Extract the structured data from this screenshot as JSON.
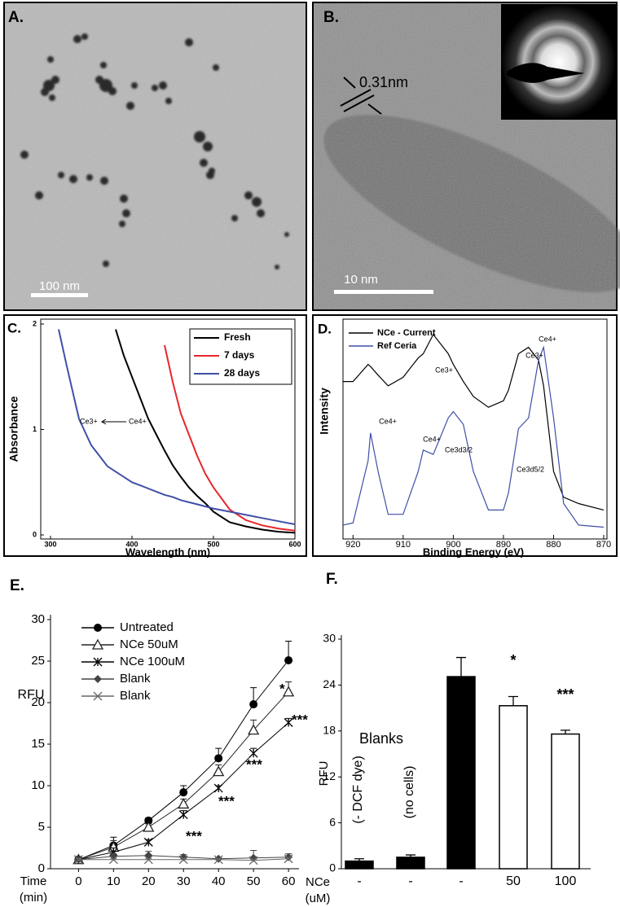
{
  "images": [
    {
      "label": "A.",
      "scale_bar": "100 nm"
    },
    {
      "label": "B.",
      "lattice_spacing": "0.31nm",
      "scale_bar": "10 nm"
    }
  ],
  "chart_data": [
    {
      "type": "line",
      "panel_label": "C.",
      "xlabel": "Wavelength (nm)",
      "ylabel": "Absorbance",
      "x": [
        310,
        320,
        335,
        350,
        370,
        380,
        390,
        400,
        410,
        420,
        430,
        440,
        450,
        460,
        470,
        480,
        490,
        500,
        520,
        540,
        560,
        580,
        600
      ],
      "series": [
        {
          "name": "Fresh",
          "color": "#000000",
          "values": [
            null,
            null,
            null,
            null,
            null,
            1.95,
            1.7,
            1.5,
            1.3,
            1.1,
            0.95,
            0.8,
            0.66,
            0.55,
            0.45,
            0.37,
            0.3,
            0.22,
            0.12,
            0.08,
            0.05,
            0.03,
            0.02
          ]
        },
        {
          "name": "7 days",
          "color": "#e8262b",
          "values": [
            null,
            null,
            null,
            null,
            null,
            null,
            null,
            null,
            null,
            null,
            null,
            1.8,
            1.45,
            1.15,
            0.95,
            0.75,
            0.58,
            0.45,
            0.24,
            0.14,
            0.09,
            0.06,
            0.04
          ]
        },
        {
          "name": "28 days",
          "color": "#3f4fa8",
          "values": [
            1.95,
            1.6,
            1.1,
            0.85,
            0.65,
            0.6,
            0.55,
            0.5,
            0.47,
            0.44,
            0.41,
            0.38,
            0.36,
            0.33,
            0.31,
            0.29,
            0.27,
            0.25,
            0.22,
            0.19,
            0.16,
            0.13,
            0.1
          ]
        }
      ],
      "xlim": [
        288,
        600
      ],
      "ylim": [
        0,
        2
      ],
      "xticks": [
        300,
        400,
        500,
        600
      ],
      "yticks": [
        0,
        1,
        2
      ],
      "legend": "upper right",
      "annotations": [
        "Ce3+",
        "Ce4+"
      ]
    },
    {
      "type": "line",
      "panel_label": "D.",
      "xlabel": "Binding Energy (eV)",
      "ylabel": "Intensity",
      "x": [
        922,
        920,
        917,
        916.5,
        915,
        913,
        910,
        907,
        906,
        904,
        901,
        900,
        898,
        896,
        893,
        890,
        889,
        887,
        885,
        883,
        882,
        880,
        878,
        875,
        870
      ],
      "series": [
        {
          "name": "NCe - Current",
          "color": "#000000",
          "values": [
            0.72,
            0.72,
            0.8,
            0.79,
            0.75,
            0.7,
            0.74,
            0.83,
            0.85,
            0.94,
            0.85,
            0.8,
            0.72,
            0.65,
            0.6,
            0.63,
            0.68,
            0.85,
            0.88,
            0.82,
            0.7,
            0.3,
            0.18,
            0.15,
            0.12
          ]
        },
        {
          "name": "Ref Ceria",
          "color": "#3f4fa8",
          "values": [
            0.05,
            0.06,
            0.35,
            0.48,
            0.3,
            0.1,
            0.1,
            0.3,
            0.4,
            0.38,
            0.55,
            0.58,
            0.52,
            0.3,
            0.12,
            0.12,
            0.2,
            0.5,
            0.55,
            0.82,
            0.88,
            0.55,
            0.15,
            0.05,
            0.04
          ]
        }
      ],
      "xlim": [
        922,
        870
      ],
      "ylim": [
        0,
        1
      ],
      "xticks": [
        920,
        910,
        900,
        890,
        880,
        870
      ],
      "legend": "upper left",
      "annotations": [
        "Ce4+",
        "Ce3+",
        "Ce4+",
        "Ce3d3/2",
        "Ce3+",
        "Ce4+",
        "Ce3d5/2"
      ]
    },
    {
      "type": "line",
      "panel_label": "E.",
      "xlabel": [
        "Time",
        "(min)"
      ],
      "ylabel": "RFU",
      "x": [
        0,
        10,
        20,
        30,
        40,
        50,
        60
      ],
      "series": [
        {
          "name": "Untreated",
          "color": "#000000",
          "marker": "circle",
          "values": [
            1.1,
            2.8,
            5.8,
            9.2,
            13.3,
            19.8,
            25.1
          ],
          "errors": [
            0.1,
            1.0,
            0.3,
            0.8,
            1.2,
            2.0,
            2.3
          ]
        },
        {
          "name": "NCe 50uM",
          "color": "#222222",
          "marker": "triangle",
          "values": [
            1.1,
            2.6,
            5.0,
            7.8,
            11.7,
            16.7,
            21.3
          ],
          "errors": [
            0.1,
            0.8,
            0.4,
            0.6,
            0.8,
            1.2,
            1.2
          ]
        },
        {
          "name": "NCe 100uM",
          "color": "#000000",
          "marker": "asterisk",
          "values": [
            1.1,
            2.0,
            3.2,
            6.5,
            9.7,
            13.9,
            17.6
          ],
          "errors": [
            0.1,
            0.5,
            0.3,
            0.5,
            0.3,
            0.6,
            0.5
          ]
        },
        {
          "name": "Blank",
          "color": "#444444",
          "marker": "diamond",
          "values": [
            1.1,
            1.5,
            1.6,
            1.4,
            1.2,
            1.3,
            1.4
          ],
          "errors": [
            0.1,
            0.3,
            0.5,
            0.3,
            0.1,
            0.9,
            0.4
          ]
        },
        {
          "name": "Blank",
          "color": "#666666",
          "marker": "x",
          "values": [
            1.1,
            1.1,
            1.1,
            1.1,
            1.1,
            1.0,
            1.2
          ],
          "errors": [
            0.1,
            0.1,
            0.1,
            0.1,
            0.1,
            0.1,
            0.1
          ]
        }
      ],
      "xlim": [
        -8,
        63
      ],
      "ylim": [
        0,
        30
      ],
      "xticks": [
        0,
        10,
        20,
        30,
        40,
        50,
        60
      ],
      "yticks": [
        0,
        5,
        10,
        15,
        20,
        25,
        30
      ],
      "legend": "upper left",
      "annotations": [
        "*",
        "***",
        "***",
        "***",
        "***"
      ]
    },
    {
      "type": "bar",
      "panel_label": "F.",
      "xlabel": [
        "NCe",
        "(uM)"
      ],
      "ylabel": "RFU",
      "categories": [
        "-",
        "-",
        "-",
        "50",
        "100"
      ],
      "values": [
        1.0,
        1.5,
        25.1,
        21.3,
        17.6
      ],
      "errors": [
        0.3,
        0.3,
        2.5,
        1.2,
        0.5
      ],
      "colors": [
        "#000000",
        "#000000",
        "#000000",
        "#ffffff",
        "#ffffff"
      ],
      "ylim": [
        0,
        30
      ],
      "yticks": [
        0,
        6,
        12,
        18,
        24,
        30
      ],
      "annotations": [
        "Blanks",
        "(- DCF dye)",
        "(no cells)",
        "*",
        "***"
      ]
    }
  ]
}
